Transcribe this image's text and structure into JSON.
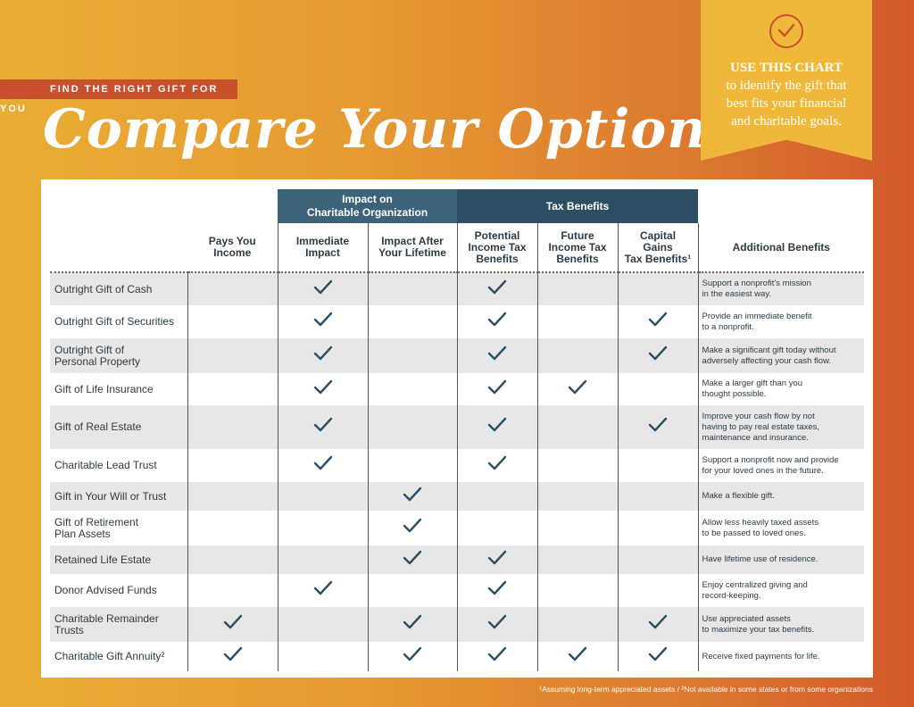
{
  "header": {
    "tagline": "FIND THE RIGHT GIFT FOR YOU",
    "title": "Compare Your Options"
  },
  "callout": {
    "icon": "check-circle-icon",
    "title": "USE THIS CHART",
    "body_lines": [
      "to identify the gift that",
      "best fits your financial",
      "and charitable goals."
    ]
  },
  "table": {
    "groups": {
      "impact": [
        "Impact on",
        "Charitable Organization"
      ],
      "tax": "Tax Benefits"
    },
    "columns": [
      [
        "Pays You",
        "Income"
      ],
      [
        "Immediate",
        "Impact"
      ],
      [
        "Impact After",
        "Your Lifetime"
      ],
      [
        "Potential",
        "Income Tax",
        "Benefits"
      ],
      [
        "Future",
        "Income Tax",
        "Benefits"
      ],
      [
        "Capital",
        "Gains",
        "Tax Benefits¹"
      ],
      [
        "Additional Benefits"
      ]
    ],
    "rows": [
      {
        "name": [
          "Outright Gift of Cash"
        ],
        "checks": [
          false,
          true,
          false,
          true,
          false,
          false
        ],
        "benefit": [
          "Support a nonprofit’s mission",
          "in the easiest way."
        ]
      },
      {
        "name": [
          "Outright Gift of Securities"
        ],
        "checks": [
          false,
          true,
          false,
          true,
          false,
          true
        ],
        "benefit": [
          "Provide an immediate benefit",
          "to a nonprofit."
        ]
      },
      {
        "name": [
          "Outright Gift of",
          "Personal Property"
        ],
        "checks": [
          false,
          true,
          false,
          true,
          false,
          true
        ],
        "benefit": [
          "Make a significant gift today without",
          "adversely affecting your cash flow."
        ]
      },
      {
        "name": [
          "Gift of Life Insurance"
        ],
        "checks": [
          false,
          true,
          false,
          true,
          true,
          false
        ],
        "benefit": [
          "Make a larger gift than you",
          "thought possible."
        ]
      },
      {
        "name": [
          "Gift of Real Estate"
        ],
        "checks": [
          false,
          true,
          false,
          true,
          false,
          true
        ],
        "benefit": [
          "Improve your cash flow by not",
          "having to pay real estate taxes,",
          "maintenance and insurance."
        ]
      },
      {
        "name": [
          "Charitable Lead Trust"
        ],
        "checks": [
          false,
          true,
          false,
          true,
          false,
          false
        ],
        "benefit": [
          "Support a nonprofit now and provide",
          "for your loved ones in the future."
        ]
      },
      {
        "name": [
          "Gift in Your Will or Trust"
        ],
        "checks": [
          false,
          false,
          true,
          false,
          false,
          false
        ],
        "benefit": [
          "Make a flexible gift."
        ]
      },
      {
        "name": [
          "Gift of Retirement",
          "Plan Assets"
        ],
        "checks": [
          false,
          false,
          true,
          false,
          false,
          false
        ],
        "benefit": [
          "Allow less heavily taxed assets",
          "to be passed to loved ones."
        ]
      },
      {
        "name": [
          "Retained Life Estate"
        ],
        "checks": [
          false,
          false,
          true,
          true,
          false,
          false
        ],
        "benefit": [
          "Have lifetime use of residence."
        ]
      },
      {
        "name": [
          "Donor Advised Funds"
        ],
        "checks": [
          false,
          true,
          false,
          true,
          false,
          false
        ],
        "benefit": [
          "Enjoy centralized giving and",
          "record-keeping."
        ]
      },
      {
        "name": [
          "Charitable Remainder",
          "Trusts"
        ],
        "checks": [
          true,
          false,
          true,
          true,
          false,
          true
        ],
        "benefit": [
          "Use appreciated assets",
          "to maximize your tax benefits."
        ]
      },
      {
        "name": [
          "Charitable Gift Annuity²"
        ],
        "checks": [
          true,
          false,
          true,
          true,
          true,
          true
        ],
        "benefit": [
          "Receive fixed payments for life."
        ]
      }
    ]
  },
  "footnote": "¹Assuming long-term appreciated assets  /  ²Not available in some states or from some organizations",
  "colors": {
    "check": "#2c4f63",
    "accent": "#c9502c",
    "callout": "#f0b83b"
  }
}
